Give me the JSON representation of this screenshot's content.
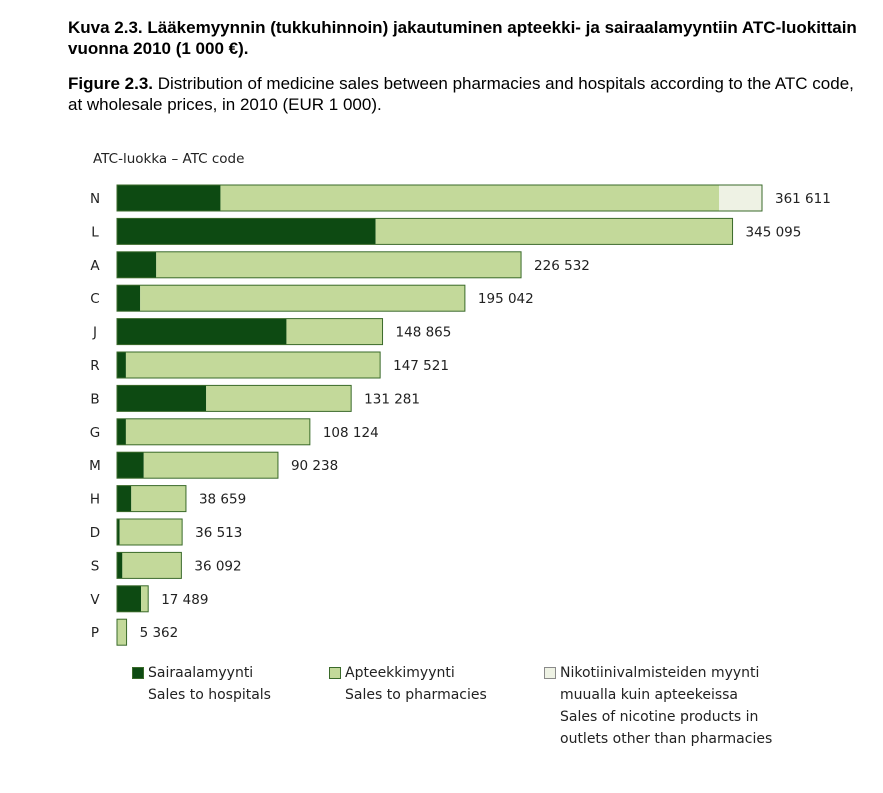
{
  "header": {
    "title_fi": "Kuva 2.3.  Lääkemyynnin (tukkuhinnoin) jakautuminen apteekki- ja sairaalamyyntiin ATC-luokittain vuonna 2010 (1 000 €).",
    "figure_label": "Figure 2.3.",
    "title_en": " Distribution of medicine sales between pharmacies and hospitals according to the ATC code, at wholesale prices, in 2010 (EUR 1 000)."
  },
  "chart_data": {
    "type": "bar",
    "orientation": "horizontal",
    "stacked": true,
    "axis_title": "ATC-luokka – ATC code",
    "categories": [
      "N",
      "L",
      "A",
      "C",
      "J",
      "R",
      "B",
      "G",
      "M",
      "H",
      "D",
      "S",
      "V",
      "P"
    ],
    "totals": [
      361611,
      345095,
      226532,
      195042,
      148865,
      147521,
      131281,
      108124,
      90238,
      38659,
      36513,
      36092,
      17489,
      5362
    ],
    "total_labels": [
      "361 611",
      "345 095",
      "226 532",
      "195 042",
      "148 865",
      "147 521",
      "131 281",
      "108 124",
      "90 238",
      "38 659",
      "36 513",
      "36 092",
      "17 489",
      "5 362"
    ],
    "series": [
      {
        "name": "Sairaalamyynti / Sales to hospitals",
        "color": "#0d4a12",
        "values": [
          58000,
          145000,
          22000,
          13000,
          95000,
          5000,
          50000,
          5000,
          15000,
          8000,
          1500,
          3000,
          13500,
          0
        ]
      },
      {
        "name": "Apteekkimyynti / Sales to pharmacies",
        "color": "#c3d99a",
        "values": [
          279611,
          200095,
          204532,
          182042,
          53865,
          142521,
          81281,
          103124,
          75238,
          30659,
          35013,
          33092,
          3989,
          5362
        ]
      },
      {
        "name": "Nikotiinivalmisteiden myynti muualla kuin apteekeissa / Sales of nicotine products in outlets other than pharmacies",
        "color": "#eef2e4",
        "values": [
          24000,
          0,
          0,
          0,
          0,
          0,
          0,
          0,
          0,
          0,
          0,
          0,
          0,
          0
        ]
      }
    ],
    "legend_placement": "bottom",
    "grid": false
  },
  "legend": [
    {
      "color": "#0d4a12",
      "lines": [
        "Sairaalamyynti",
        "Sales to hospitals"
      ]
    },
    {
      "color": "#c3d99a",
      "lines": [
        "Apteekkimyynti",
        "Sales to pharmacies"
      ]
    },
    {
      "color": "#eef2e4",
      "lines": [
        "Nikotiinivalmisteiden myynti",
        "muualla kuin apteekeissa",
        "Sales of nicotine products in",
        "outlets other than pharmacies"
      ]
    }
  ]
}
